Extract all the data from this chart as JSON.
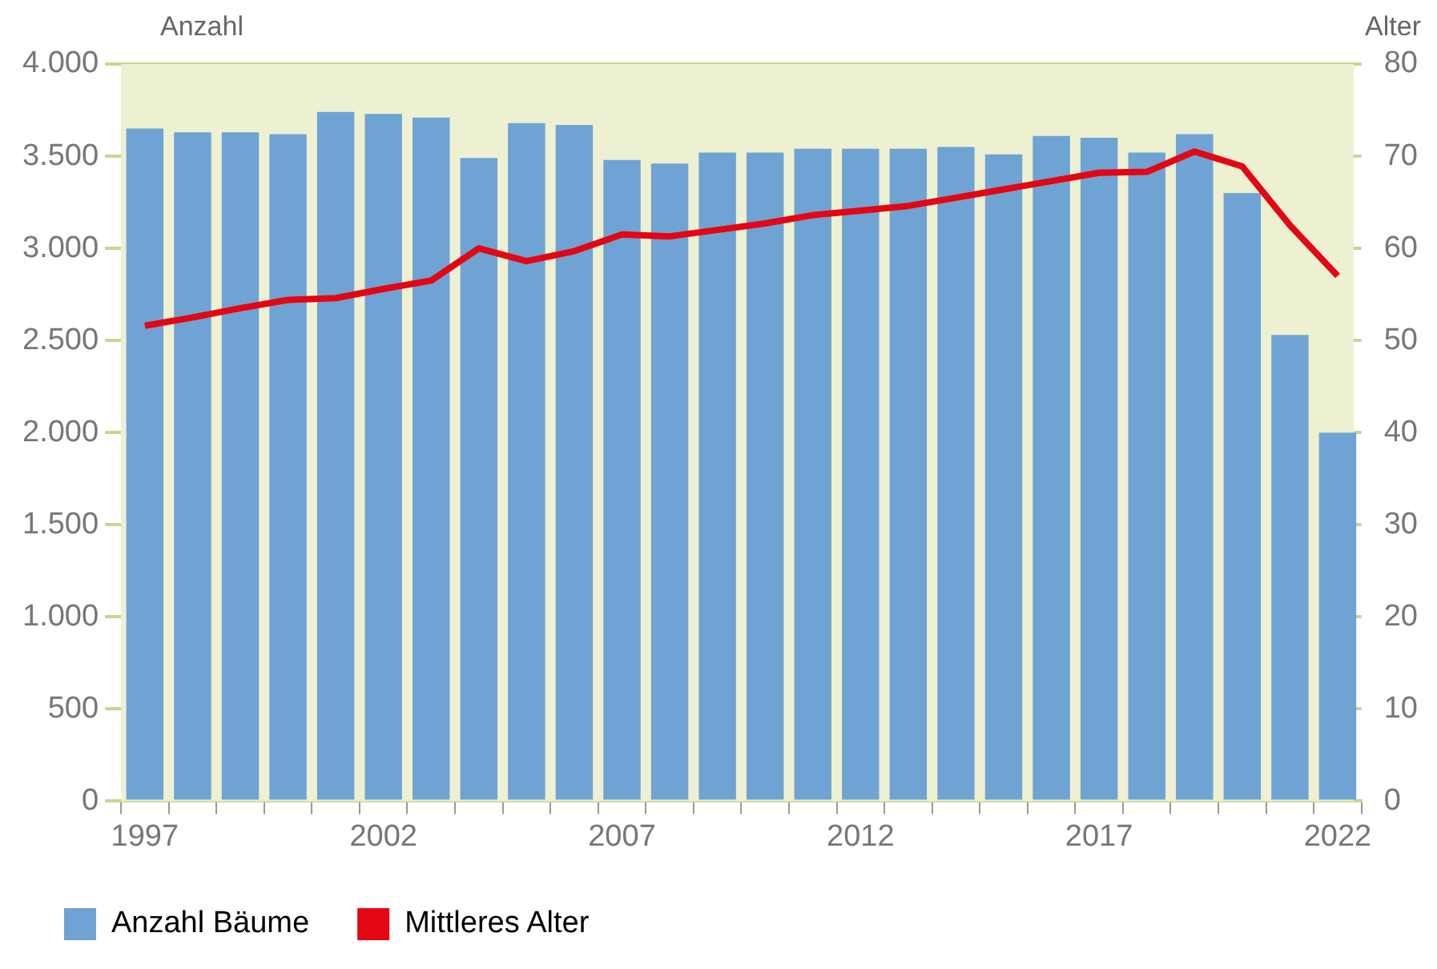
{
  "chart_data": {
    "type": "bar",
    "ylabel": "Anzahl",
    "y2label": "Alter",
    "categories": [
      "1997",
      null,
      null,
      null,
      null,
      "2002",
      null,
      null,
      null,
      null,
      "2007",
      null,
      null,
      null,
      null,
      "2012",
      null,
      null,
      null,
      null,
      "2017",
      null,
      null,
      null,
      null,
      "2022"
    ],
    "series": [
      {
        "name": "Anzahl Bäume",
        "color": "#6fa3d4",
        "values": [
          3650,
          3630,
          3630,
          3620,
          3740,
          3730,
          3710,
          3490,
          3680,
          3670,
          3480,
          3460,
          3520,
          3520,
          3540,
          3540,
          3540,
          3550,
          3510,
          3610,
          3600,
          3520,
          3620,
          3300,
          2530,
          2000
        ]
      },
      {
        "name": "Mittleres Alter",
        "type": "line",
        "axis": "y2",
        "color": "#e30613",
        "values": [
          51.6,
          52.5,
          53.5,
          54.4,
          54.6,
          55.6,
          56.5,
          60,
          58.6,
          59.7,
          61.5,
          61.3,
          62,
          62.7,
          63.6,
          64.1,
          64.6,
          65.5,
          66.4,
          67.3,
          68.2,
          68.3,
          70.5,
          68.9,
          62.5,
          57
        ]
      }
    ],
    "ylim": [
      0,
      4000
    ],
    "yticks": [
      {
        "value": 0,
        "label": "0"
      },
      {
        "value": 500,
        "label": "500"
      },
      {
        "value": 1000,
        "label": "1.000"
      },
      {
        "value": 1500,
        "label": "1.500"
      },
      {
        "value": 2000,
        "label": "2.000"
      },
      {
        "value": 2500,
        "label": "2.500"
      },
      {
        "value": 3000,
        "label": "3.000"
      },
      {
        "value": 3500,
        "label": "3.500"
      },
      {
        "value": 4000,
        "label": "4.000"
      }
    ],
    "y2lim": [
      0,
      80
    ],
    "y2ticks": [
      0,
      10,
      20,
      30,
      40,
      50,
      60,
      70,
      80
    ],
    "grid": "y",
    "legend": "bottom",
    "marker": "none",
    "line_style": "solid"
  }
}
